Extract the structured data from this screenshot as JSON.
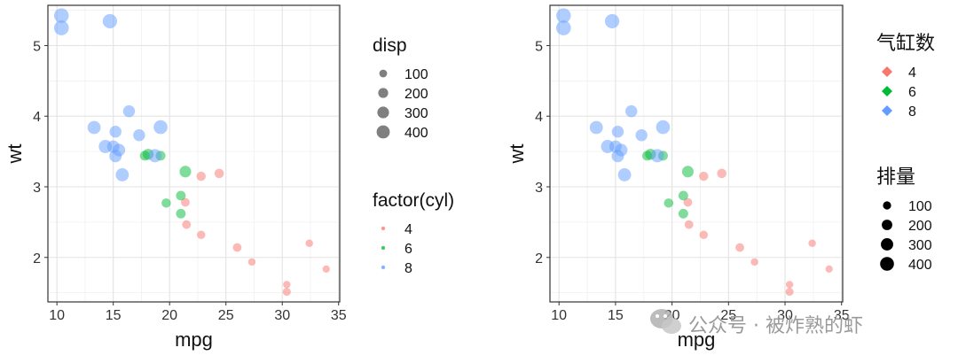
{
  "chart_data": [
    {
      "type": "scatter",
      "xlabel": "mpg",
      "ylabel": "wt",
      "xlim": [
        9.2,
        35.1
      ],
      "ylim": [
        1.37,
        5.57
      ],
      "xticks": [
        "10",
        "15",
        "20",
        "25",
        "30",
        "35"
      ],
      "yticks": [
        "2",
        "3",
        "4",
        "5"
      ],
      "grid": true,
      "point_alpha": 0.5,
      "size_legend": {
        "title": "disp",
        "labels": [
          "100",
          "200",
          "300",
          "400"
        ],
        "values": [
          100,
          200,
          300,
          400
        ]
      },
      "color_legend": {
        "title": "factor(cyl)",
        "labels": [
          "4",
          "6",
          "8"
        ],
        "shape": "point"
      },
      "legend_order": [
        "size",
        "color"
      ],
      "series": [
        {
          "name": "4",
          "color": "#F8766D",
          "x": [
            22.8,
            24.4,
            22.8,
            32.4,
            30.4,
            33.9,
            21.5,
            27.3,
            26.0,
            30.4,
            21.4
          ],
          "y": [
            2.32,
            3.19,
            3.15,
            2.2,
            1.615,
            1.835,
            2.465,
            1.935,
            2.14,
            1.513,
            2.78
          ],
          "disp": [
            108,
            146.7,
            140.8,
            78.7,
            75.7,
            71.1,
            120.1,
            79,
            120.3,
            95.1,
            121
          ]
        },
        {
          "name": "6",
          "color": "#00BA38",
          "x": [
            21.0,
            21.0,
            21.4,
            18.1,
            19.2,
            17.8,
            19.7
          ],
          "y": [
            2.62,
            2.875,
            3.215,
            3.46,
            3.44,
            3.44,
            2.77
          ],
          "disp": [
            160,
            160,
            258,
            225,
            167.6,
            167.6,
            145
          ]
        },
        {
          "name": "8",
          "color": "#619CFF",
          "x": [
            18.7,
            14.3,
            16.4,
            17.3,
            15.2,
            10.4,
            10.4,
            14.7,
            15.5,
            15.2,
            13.3,
            19.2,
            15.8,
            15.0
          ],
          "y": [
            3.44,
            3.57,
            4.07,
            3.73,
            3.78,
            5.25,
            5.424,
            5.345,
            3.52,
            3.435,
            3.84,
            3.845,
            3.17,
            3.57
          ],
          "disp": [
            360,
            360,
            275.8,
            275.8,
            275.8,
            472,
            460,
            440,
            318,
            304,
            350,
            400,
            351,
            301
          ]
        }
      ]
    },
    {
      "type": "scatter",
      "xlabel": "mpg",
      "ylabel": "wt",
      "xlim": [
        9.2,
        35.1
      ],
      "ylim": [
        1.37,
        5.57
      ],
      "xticks": [
        "10",
        "15",
        "20",
        "25",
        "30",
        "35"
      ],
      "yticks": [
        "2",
        "3",
        "4",
        "5"
      ],
      "grid": true,
      "point_alpha": 0.5,
      "color_legend": {
        "title": "气缸数",
        "labels": [
          "4",
          "6",
          "8"
        ],
        "shape": "diamond"
      },
      "size_legend": {
        "title": "排量",
        "labels": [
          "100",
          "200",
          "300",
          "400"
        ],
        "values": [
          100,
          200,
          300,
          400
        ]
      },
      "legend_order": [
        "color",
        "size"
      ],
      "series": [
        {
          "name": "4",
          "color": "#F8766D",
          "x": [
            22.8,
            24.4,
            22.8,
            32.4,
            30.4,
            33.9,
            21.5,
            27.3,
            26.0,
            30.4,
            21.4
          ],
          "y": [
            2.32,
            3.19,
            3.15,
            2.2,
            1.615,
            1.835,
            2.465,
            1.935,
            2.14,
            1.513,
            2.78
          ],
          "disp": [
            108,
            146.7,
            140.8,
            78.7,
            75.7,
            71.1,
            120.1,
            79,
            120.3,
            95.1,
            121
          ]
        },
        {
          "name": "6",
          "color": "#00BA38",
          "x": [
            21.0,
            21.0,
            21.4,
            18.1,
            19.2,
            17.8,
            19.7
          ],
          "y": [
            2.62,
            2.875,
            3.215,
            3.46,
            3.44,
            3.44,
            2.77
          ],
          "disp": [
            160,
            160,
            258,
            225,
            167.6,
            167.6,
            145
          ]
        },
        {
          "name": "8",
          "color": "#619CFF",
          "x": [
            18.7,
            14.3,
            16.4,
            17.3,
            15.2,
            10.4,
            10.4,
            14.7,
            15.5,
            15.2,
            13.3,
            19.2,
            15.8,
            15.0
          ],
          "y": [
            3.44,
            3.57,
            4.07,
            3.73,
            3.78,
            5.25,
            5.424,
            5.345,
            3.52,
            3.435,
            3.84,
            3.845,
            3.17,
            3.57
          ],
          "disp": [
            360,
            360,
            275.8,
            275.8,
            275.8,
            472,
            460,
            440,
            318,
            304,
            350,
            400,
            351,
            301
          ]
        }
      ]
    }
  ],
  "watermark": {
    "text": "公众号 · 被炸熟的虾",
    "icon": "wechat-icon",
    "color": "#9a9a9a"
  }
}
